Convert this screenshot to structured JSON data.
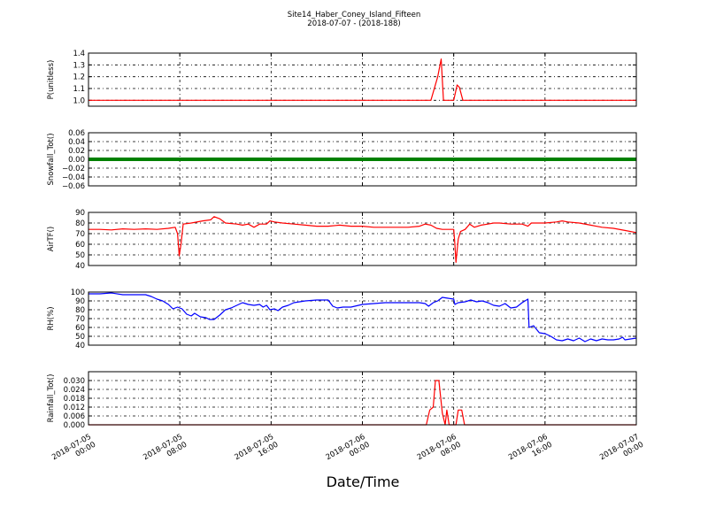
{
  "title": {
    "line1": "Site14_Haber_Coney_Island_Fifteen",
    "line2": "2018-07-07 - (2018-188)"
  },
  "chart_data": {
    "type": "line",
    "xlabel": "Date/Time",
    "x_range_hours": [
      0,
      48
    ],
    "x_ticks": [
      {
        "hours": 0,
        "line1": "2018-07-05",
        "line2": "00:00"
      },
      {
        "hours": 8,
        "line1": "2018-07-05",
        "line2": "08:00"
      },
      {
        "hours": 16,
        "line1": "2018-07-05",
        "line2": "16:00"
      },
      {
        "hours": 24,
        "line1": "2018-07-06",
        "line2": "00:00"
      },
      {
        "hours": 32,
        "line1": "2018-07-06",
        "line2": "08:00"
      },
      {
        "hours": 40,
        "line1": "2018-07-06",
        "line2": "16:00"
      },
      {
        "hours": 48,
        "line1": "2018-07-07",
        "line2": "00:00"
      }
    ],
    "panels": [
      {
        "id": "p",
        "ylabel": "P(unitless)",
        "ylim": [
          0.95,
          1.4
        ],
        "yticks": [
          1.0,
          1.1,
          1.2,
          1.3,
          1.4
        ],
        "ytick_labels": [
          "1.0",
          "1.1",
          "1.2",
          "1.3",
          "1.4"
        ],
        "color": "#ff0000",
        "style": "line",
        "points": [
          [
            0,
            1.0
          ],
          [
            30.0,
            1.0
          ],
          [
            30.6,
            1.2
          ],
          [
            30.9,
            1.35
          ],
          [
            31.1,
            1.0
          ],
          [
            32.0,
            1.0
          ],
          [
            32.3,
            1.13
          ],
          [
            32.5,
            1.11
          ],
          [
            32.8,
            1.0
          ],
          [
            48,
            1.0
          ]
        ]
      },
      {
        "id": "snow",
        "ylabel": "Snowfall_Tot()",
        "ylim": [
          -0.06,
          0.06
        ],
        "yticks": [
          -0.06,
          -0.04,
          -0.02,
          0.0,
          0.02,
          0.04,
          0.06
        ],
        "ytick_labels": [
          "−0.06",
          "−0.04",
          "−0.02",
          "0.00",
          "0.02",
          "0.04",
          "0.06"
        ],
        "color": "#008000",
        "style": "thick",
        "points": [
          [
            0,
            0.0
          ],
          [
            48,
            0.0
          ]
        ]
      },
      {
        "id": "air",
        "ylabel": "AirTF()",
        "ylim": [
          40,
          90
        ],
        "yticks": [
          40,
          50,
          60,
          70,
          80,
          90
        ],
        "ytick_labels": [
          "40",
          "50",
          "60",
          "70",
          "80",
          "90"
        ],
        "color": "#ff0000",
        "style": "line",
        "points": [
          [
            0,
            74
          ],
          [
            1,
            74
          ],
          [
            2,
            73.5
          ],
          [
            3,
            74.5
          ],
          [
            4,
            74
          ],
          [
            5,
            74.5
          ],
          [
            6,
            74
          ],
          [
            7,
            75
          ],
          [
            7.6,
            76
          ],
          [
            7.8,
            70
          ],
          [
            7.95,
            49
          ],
          [
            8.1,
            60
          ],
          [
            8.3,
            79
          ],
          [
            9,
            80
          ],
          [
            10,
            82
          ],
          [
            10.7,
            83
          ],
          [
            11,
            86
          ],
          [
            11.5,
            84
          ],
          [
            12,
            80
          ],
          [
            13,
            79
          ],
          [
            13.5,
            78
          ],
          [
            14,
            79
          ],
          [
            14.5,
            76
          ],
          [
            15,
            79
          ],
          [
            15.6,
            79
          ],
          [
            15.9,
            82
          ],
          [
            16.3,
            81
          ],
          [
            17,
            80
          ],
          [
            18,
            79
          ],
          [
            19,
            78
          ],
          [
            20,
            77
          ],
          [
            21,
            77
          ],
          [
            22,
            78
          ],
          [
            23,
            77
          ],
          [
            24,
            77
          ],
          [
            25,
            76
          ],
          [
            26,
            76
          ],
          [
            27,
            76
          ],
          [
            28,
            76
          ],
          [
            29,
            77
          ],
          [
            29.5,
            79
          ],
          [
            30,
            78
          ],
          [
            30.5,
            75
          ],
          [
            31,
            74
          ],
          [
            32,
            74
          ],
          [
            32.1,
            60
          ],
          [
            32.2,
            43
          ],
          [
            32.4,
            65
          ],
          [
            32.6,
            72
          ],
          [
            33,
            74
          ],
          [
            33.4,
            79
          ],
          [
            33.8,
            76
          ],
          [
            34.4,
            78
          ],
          [
            35,
            79
          ],
          [
            35.5,
            80
          ],
          [
            36,
            80
          ],
          [
            37,
            79
          ],
          [
            38,
            79
          ],
          [
            38.5,
            77
          ],
          [
            38.8,
            80
          ],
          [
            40,
            80
          ],
          [
            41,
            81
          ],
          [
            41.5,
            82
          ],
          [
            42,
            81
          ],
          [
            43,
            80
          ],
          [
            44,
            78
          ],
          [
            45,
            76
          ],
          [
            46,
            75
          ],
          [
            47,
            73
          ],
          [
            48,
            71
          ]
        ]
      },
      {
        "id": "rh",
        "ylabel": "RH(%)",
        "ylim": [
          40,
          100
        ],
        "yticks": [
          40,
          50,
          60,
          70,
          80,
          90,
          100
        ],
        "ytick_labels": [
          "40",
          "50",
          "60",
          "70",
          "80",
          "90",
          "100"
        ],
        "color": "#0000ff",
        "style": "line",
        "points": [
          [
            0,
            98
          ],
          [
            1,
            98
          ],
          [
            2,
            99
          ],
          [
            3,
            97
          ],
          [
            4,
            97
          ],
          [
            5,
            97
          ],
          [
            5.5,
            95
          ],
          [
            6,
            92
          ],
          [
            6.5,
            90
          ],
          [
            7,
            86
          ],
          [
            7.4,
            81
          ],
          [
            7.8,
            83
          ],
          [
            8.2,
            81
          ],
          [
            8.6,
            75
          ],
          [
            9,
            73
          ],
          [
            9.3,
            76
          ],
          [
            9.8,
            72
          ],
          [
            10.3,
            71
          ],
          [
            10.6,
            69
          ],
          [
            11,
            69
          ],
          [
            11.5,
            74
          ],
          [
            12,
            80
          ],
          [
            12.5,
            82
          ],
          [
            13,
            85
          ],
          [
            13.5,
            88
          ],
          [
            14,
            86
          ],
          [
            14.5,
            85
          ],
          [
            15,
            86
          ],
          [
            15.3,
            83
          ],
          [
            15.6,
            85
          ],
          [
            15.9,
            80
          ],
          [
            16.3,
            81
          ],
          [
            16.6,
            79
          ],
          [
            17,
            83
          ],
          [
            17.5,
            85
          ],
          [
            18,
            88
          ],
          [
            19,
            90
          ],
          [
            20,
            91
          ],
          [
            21,
            91
          ],
          [
            21.4,
            84
          ],
          [
            21.8,
            82
          ],
          [
            22.3,
            83
          ],
          [
            23,
            83
          ],
          [
            24,
            86
          ],
          [
            25,
            87
          ],
          [
            26,
            88
          ],
          [
            27,
            88
          ],
          [
            28,
            88
          ],
          [
            29,
            88
          ],
          [
            29.5,
            87
          ],
          [
            29.8,
            84
          ],
          [
            30.2,
            88
          ],
          [
            30.6,
            90
          ],
          [
            31,
            94
          ],
          [
            31.5,
            93
          ],
          [
            32,
            92
          ],
          [
            32.1,
            86
          ],
          [
            32.4,
            88
          ],
          [
            33,
            89
          ],
          [
            33.5,
            91
          ],
          [
            34,
            89
          ],
          [
            34.5,
            90
          ],
          [
            35,
            88
          ],
          [
            35.5,
            85
          ],
          [
            36,
            84
          ],
          [
            36.5,
            87
          ],
          [
            37,
            82
          ],
          [
            37.5,
            83
          ],
          [
            38,
            88
          ],
          [
            38.5,
            92
          ],
          [
            38.6,
            60
          ],
          [
            39,
            62
          ],
          [
            39.5,
            54
          ],
          [
            40,
            53
          ],
          [
            40.5,
            50
          ],
          [
            41,
            46
          ],
          [
            41.5,
            45
          ],
          [
            42,
            47
          ],
          [
            42.5,
            45
          ],
          [
            43,
            48
          ],
          [
            43.5,
            44
          ],
          [
            44,
            47
          ],
          [
            44.5,
            45
          ],
          [
            45,
            47
          ],
          [
            45.5,
            46
          ],
          [
            46,
            46
          ],
          [
            46.5,
            47
          ],
          [
            46.8,
            49
          ],
          [
            47,
            46
          ],
          [
            47.5,
            47
          ],
          [
            48,
            48
          ]
        ]
      },
      {
        "id": "rain",
        "ylabel": "Rainfall_Tot()",
        "ylim": [
          0,
          0.036
        ],
        "yticks": [
          0.0,
          0.006,
          0.012,
          0.018,
          0.024,
          0.03
        ],
        "ytick_labels": [
          "0.000",
          "0.006",
          "0.012",
          "0.018",
          "0.024",
          "0.030"
        ],
        "color": "#ff0000",
        "style": "line",
        "points": [
          [
            0,
            0
          ],
          [
            29.6,
            0
          ],
          [
            29.9,
            0.01
          ],
          [
            30.2,
            0.012
          ],
          [
            30.4,
            0.03
          ],
          [
            30.7,
            0.03
          ],
          [
            31.0,
            0.008
          ],
          [
            31.25,
            0
          ],
          [
            31.4,
            0.01
          ],
          [
            31.6,
            0
          ],
          [
            32.2,
            0
          ],
          [
            32.4,
            0.01
          ],
          [
            32.7,
            0.01
          ],
          [
            32.95,
            0
          ],
          [
            48,
            0
          ]
        ]
      }
    ]
  }
}
